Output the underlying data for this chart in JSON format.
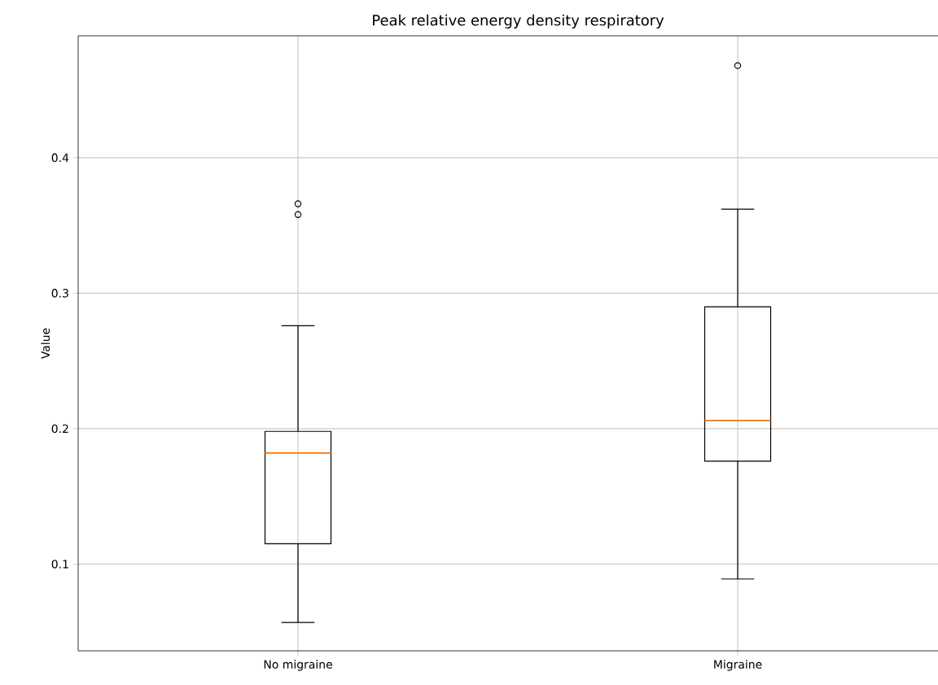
{
  "chart_data": {
    "type": "box",
    "title": "Peak relative energy density respiratory",
    "ylabel": "Value",
    "categories": [
      "No migraine",
      "Migraine"
    ],
    "boxes": [
      {
        "low": 0.057,
        "q1": 0.115,
        "median": 0.182,
        "q3": 0.198,
        "high": 0.276,
        "outliers": [
          0.366,
          0.358
        ]
      },
      {
        "low": 0.089,
        "q1": 0.176,
        "median": 0.206,
        "q3": 0.29,
        "high": 0.362,
        "outliers": [
          0.468
        ]
      }
    ],
    "ylim": [
      0.036,
      0.49
    ],
    "yticks": [
      0.1,
      0.2,
      0.3,
      0.4
    ],
    "grid": true
  }
}
